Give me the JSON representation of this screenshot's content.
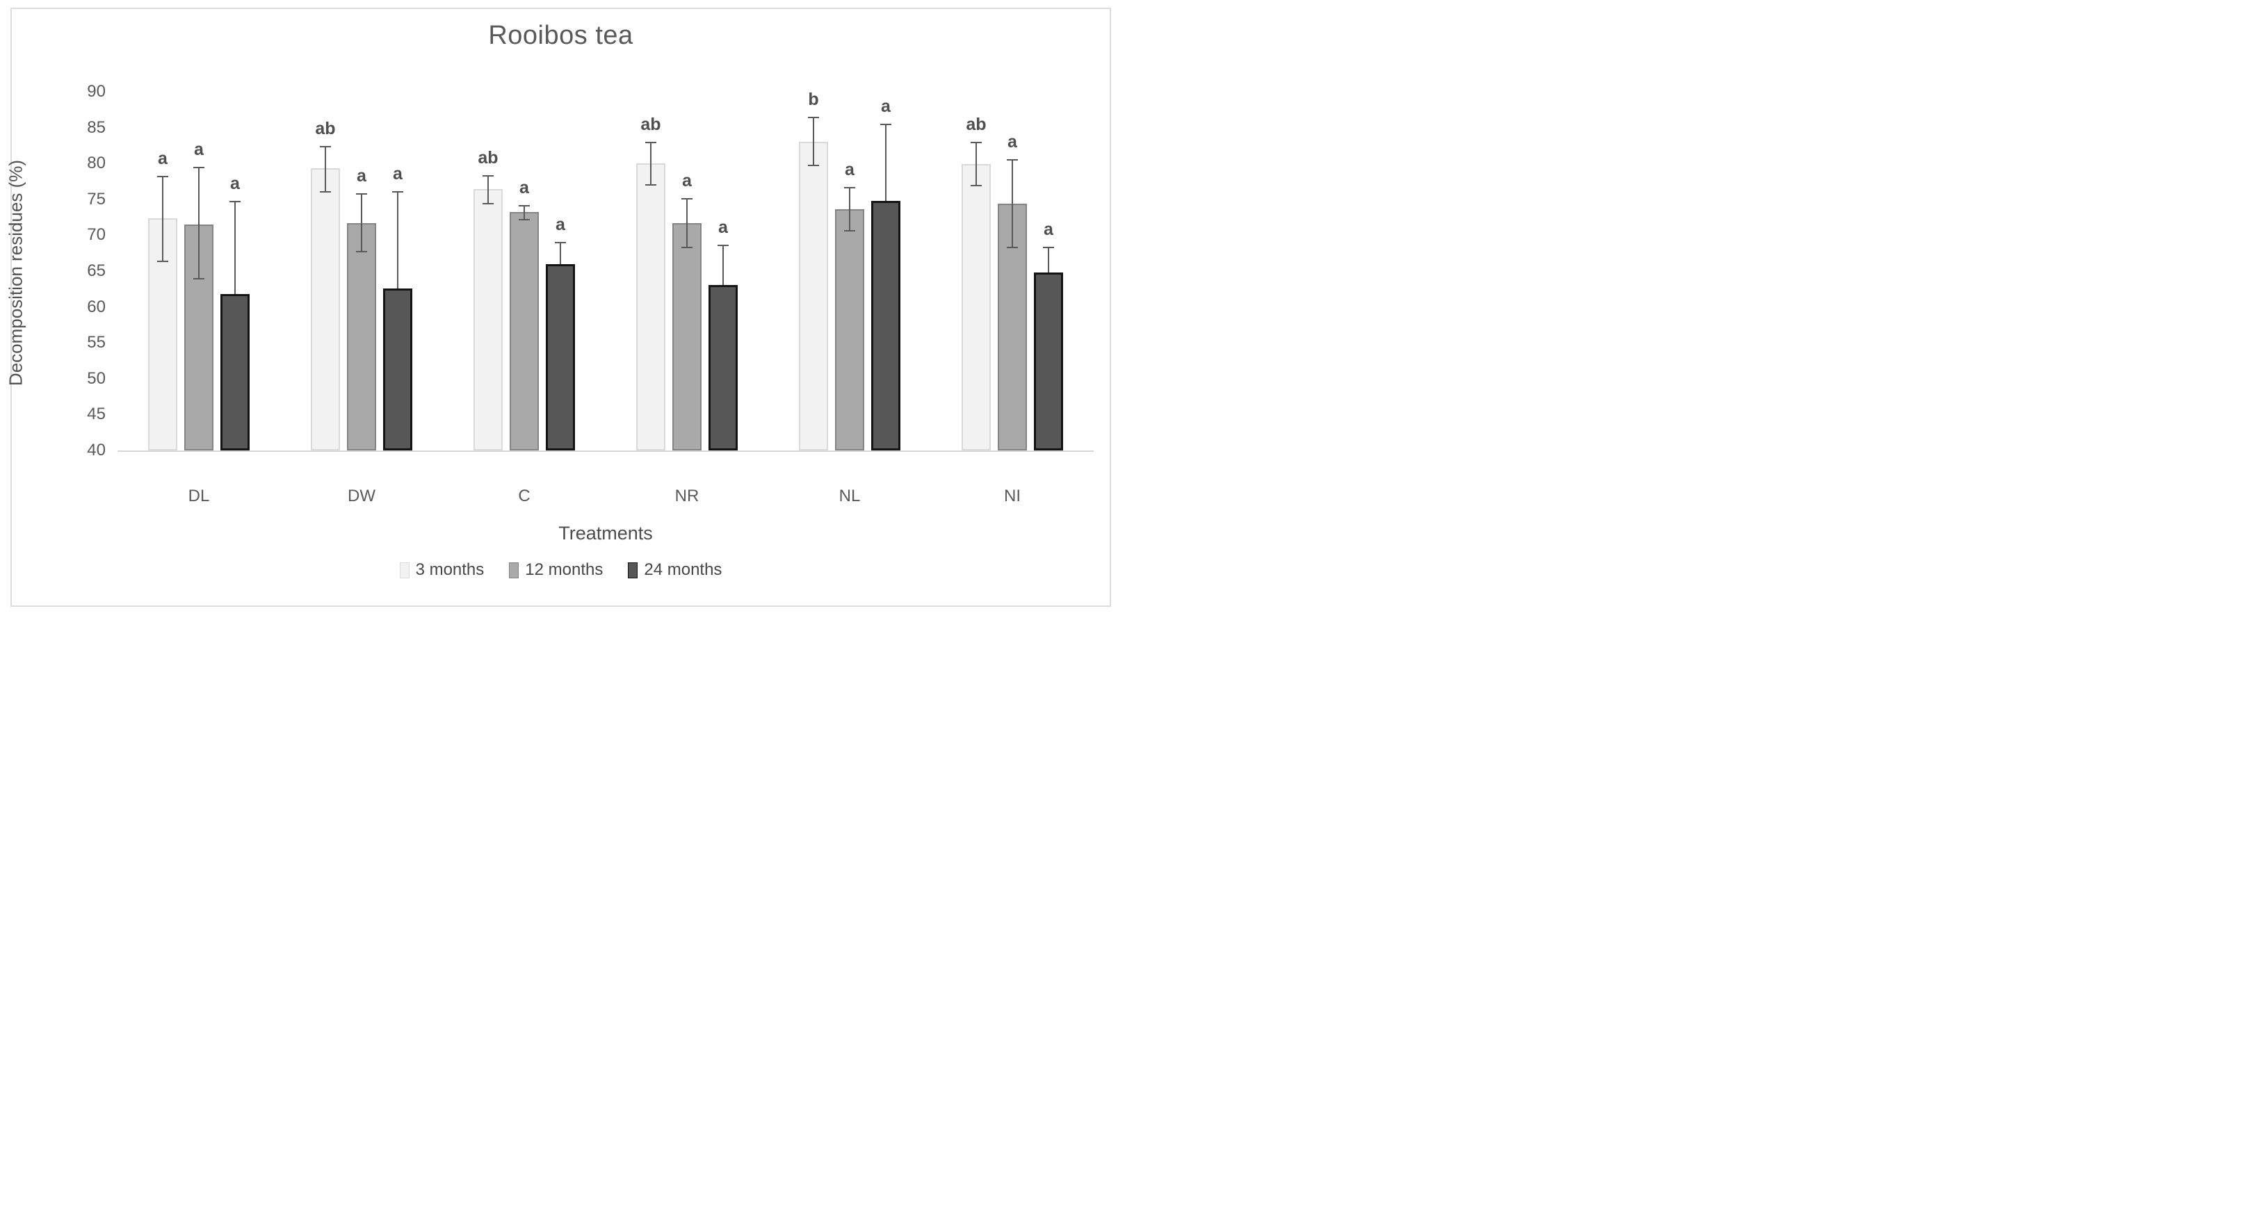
{
  "title": "Rooibos tea",
  "chart_data": {
    "type": "bar",
    "title": "Rooibos tea",
    "xlabel": "Treatments",
    "ylabel": "Decomposition residues (%)",
    "ylim": [
      40,
      90
    ],
    "y_ticks": [
      90,
      85,
      80,
      75,
      70,
      65,
      60,
      55,
      50,
      45,
      40
    ],
    "grid": false,
    "legend_position": "bottom",
    "error_bar_color": "#595959",
    "categories": [
      "DL",
      "DW",
      "C",
      "NR",
      "NL",
      "NI"
    ],
    "series": [
      {
        "name": "3 months",
        "color": "#f2f2f2",
        "border_color": "#d9d9d9",
        "values": [
          72.4,
          79.3,
          76.4,
          80.0,
          83.0,
          79.9
        ],
        "err_up": [
          5.8,
          3.0,
          1.9,
          2.9,
          3.4,
          3.0
        ],
        "err_down": [
          6.0,
          3.3,
          2.0,
          3.0,
          3.3,
          3.0
        ],
        "sig_letters": [
          "a",
          "ab",
          "ab",
          "ab",
          "b",
          "ab"
        ]
      },
      {
        "name": "12 months",
        "color": "#a9a9a9",
        "border_color": "#848484",
        "values": [
          71.5,
          71.7,
          73.2,
          71.7,
          73.6,
          74.4
        ],
        "err_up": [
          7.9,
          4.1,
          0.9,
          3.4,
          3.0,
          6.1
        ],
        "err_down": [
          7.6,
          4.0,
          1.0,
          3.4,
          3.0,
          6.1
        ],
        "sig_letters": [
          "a",
          "a",
          "a",
          "a",
          "a",
          "a"
        ]
      },
      {
        "name": "24 months",
        "color": "#575757",
        "border_color": "#141414",
        "values": [
          61.8,
          62.6,
          66.0,
          63.1,
          74.8,
          64.8
        ],
        "err_up": [
          12.9,
          13.4,
          3.0,
          5.5,
          10.6,
          3.5
        ],
        "err_down": [
          0,
          0,
          0,
          0,
          0,
          0
        ],
        "sig_letters": [
          "a",
          "a",
          "a",
          "a",
          "a",
          "a"
        ]
      }
    ]
  }
}
